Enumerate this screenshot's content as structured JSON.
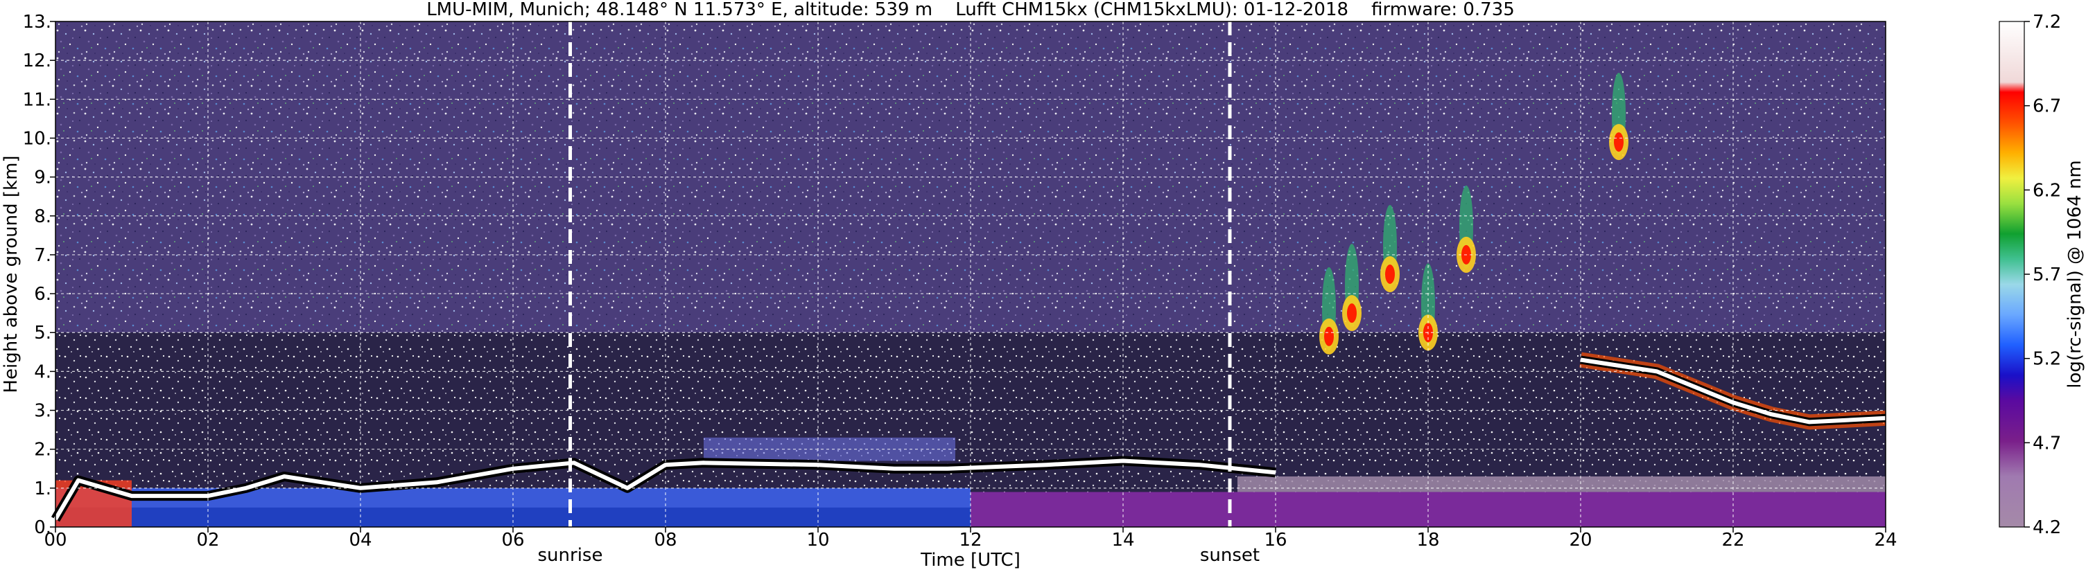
{
  "chart_data": {
    "type": "heatmap",
    "title": "LMU-MIM, Munich; 48.148° N 11.573° E, altitude: 539 m    Lufft CHM15kx (CHM15kxLMU): 01-12-2018    firmware: 0.735",
    "xlabel": "Time [UTC]",
    "ylabel": "Height above ground [km]",
    "xlim": [
      0,
      24
    ],
    "ylim": [
      0,
      13
    ],
    "x_ticks": [
      "00",
      "02",
      "04",
      "06",
      "08",
      "10",
      "12",
      "14",
      "16",
      "18",
      "20",
      "22",
      "24"
    ],
    "y_ticks": [
      "0.",
      "1.",
      "2.",
      "3.",
      "4.",
      "5.",
      "6.",
      "7.",
      "8.",
      "9.",
      "10.",
      "11.",
      "12.",
      "13."
    ],
    "grid": true,
    "colorbar": {
      "label": "log(rc-signal) @ 1064 nm",
      "range": [
        4.2,
        7.2
      ],
      "ticks": [
        "4.2",
        "4.7",
        "5.2",
        "5.7",
        "6.2",
        "6.7",
        "7.2"
      ]
    },
    "markers": [
      {
        "label": "sunrise",
        "time": 6.75
      },
      {
        "label": "sunset",
        "time": 15.4
      }
    ],
    "boundary_layer": [
      {
        "t": 0.0,
        "h": 0.2
      },
      {
        "t": 0.3,
        "h": 1.2
      },
      {
        "t": 1.0,
        "h": 0.8
      },
      {
        "t": 2.0,
        "h": 0.8
      },
      {
        "t": 2.5,
        "h": 1.0
      },
      {
        "t": 3.0,
        "h": 1.3
      },
      {
        "t": 4.0,
        "h": 1.0
      },
      {
        "t": 5.0,
        "h": 1.15
      },
      {
        "t": 6.0,
        "h": 1.5
      },
      {
        "t": 6.8,
        "h": 1.65
      },
      {
        "t": 7.5,
        "h": 1.0
      },
      {
        "t": 8.0,
        "h": 1.6
      },
      {
        "t": 8.5,
        "h": 1.65
      },
      {
        "t": 10.0,
        "h": 1.6
      },
      {
        "t": 11.0,
        "h": 1.5
      },
      {
        "t": 11.7,
        "h": 1.5
      },
      {
        "t": 13.0,
        "h": 1.6
      },
      {
        "t": 14.0,
        "h": 1.7
      },
      {
        "t": 15.0,
        "h": 1.6
      },
      {
        "t": 16.0,
        "h": 1.4
      }
    ],
    "elevated_layer": [
      {
        "t": 20.0,
        "h": 4.3
      },
      {
        "t": 21.0,
        "h": 4.0
      },
      {
        "t": 21.5,
        "h": 3.6
      },
      {
        "t": 22.0,
        "h": 3.2
      },
      {
        "t": 22.5,
        "h": 2.9
      },
      {
        "t": 23.0,
        "h": 2.7
      },
      {
        "t": 24.0,
        "h": 2.8
      }
    ],
    "cloud_features": [
      {
        "t": 16.7,
        "h": 4.9
      },
      {
        "t": 17.0,
        "h": 5.5
      },
      {
        "t": 17.5,
        "h": 6.5
      },
      {
        "t": 18.0,
        "h": 5.0
      },
      {
        "t": 18.5,
        "h": 7.0
      },
      {
        "t": 20.5,
        "h": 9.9
      }
    ]
  }
}
